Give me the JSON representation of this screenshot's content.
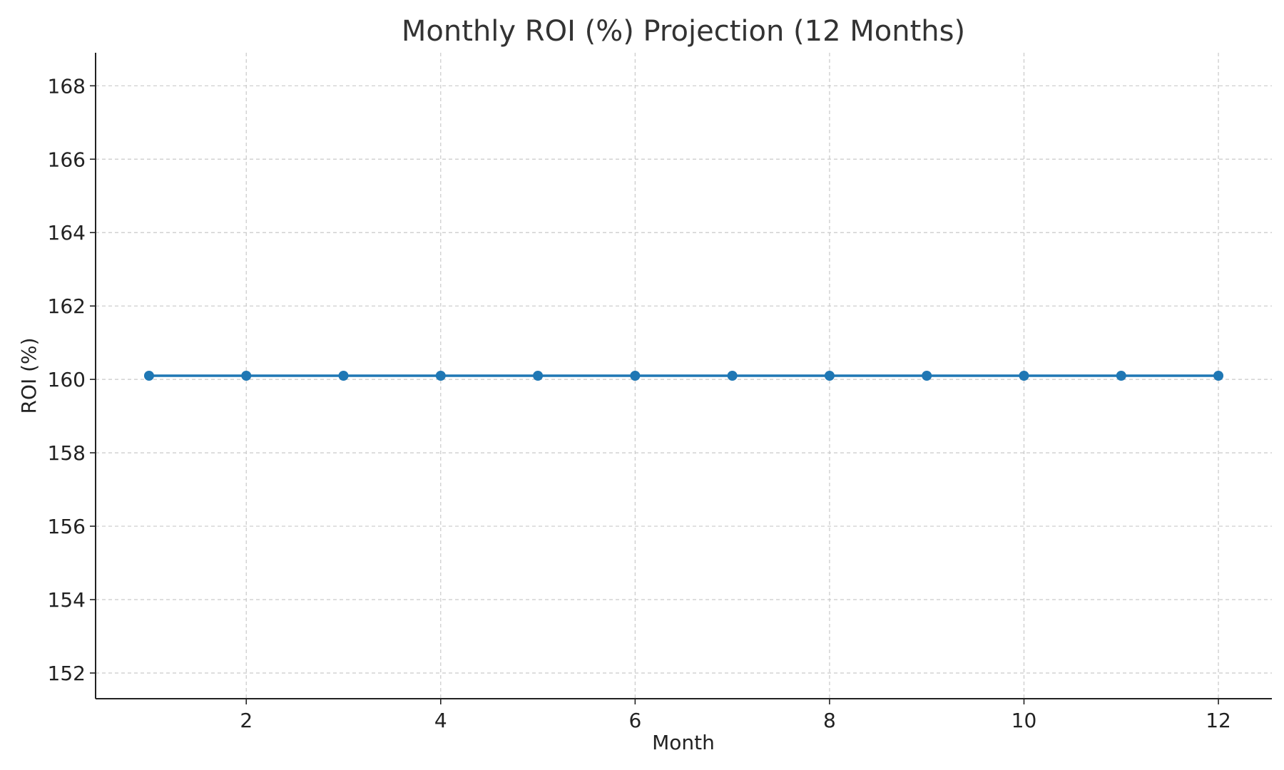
{
  "chart_data": {
    "type": "line",
    "title": "Monthly ROI (%) Projection (12 Months)",
    "xlabel": "Month",
    "ylabel": "ROI (%)",
    "x": [
      1,
      2,
      3,
      4,
      5,
      6,
      7,
      8,
      9,
      10,
      11,
      12
    ],
    "series": [
      {
        "values": [
          160.1,
          160.1,
          160.1,
          160.1,
          160.1,
          160.1,
          160.1,
          160.1,
          160.1,
          160.1,
          160.1,
          160.1
        ],
        "color": "#1f77b4",
        "marker": "circle"
      }
    ],
    "xlim": [
      0.45,
      12.55
    ],
    "ylim": [
      151.3,
      168.9
    ],
    "xticks": [
      2,
      4,
      6,
      8,
      10,
      12
    ],
    "yticks": [
      152,
      154,
      156,
      158,
      160,
      162,
      164,
      166,
      168
    ],
    "grid": true,
    "grid_style": "dashed",
    "legend": "none"
  }
}
